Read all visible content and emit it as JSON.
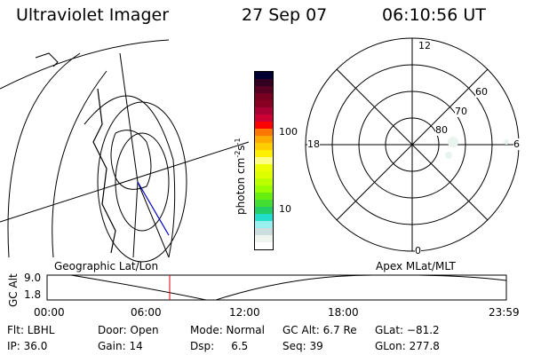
{
  "header": {
    "instrument": "Ultraviolet Imager",
    "date": "27 Sep 07",
    "time": "06:10:56 UT"
  },
  "colorbar": {
    "label": "photon cm",
    "label_exp1": "-2",
    "label_mid": "s",
    "label_exp2": "-1",
    "ticks": [
      "100",
      "10"
    ],
    "colors": [
      "#000033",
      "#330022",
      "#550022",
      "#770022",
      "#880022",
      "#aa0033",
      "#cc0033",
      "#ff0000",
      "#ff7700",
      "#ffaa00",
      "#ffcc00",
      "#ffee00",
      "#ffff88",
      "#eeff00",
      "#ddff00",
      "#bbff00",
      "#99ff00",
      "#66ee11",
      "#44dd33",
      "#22cc66",
      "#22ddcc",
      "#99eeee",
      "#ccdddd",
      "#eef4ee",
      "#ffffff"
    ]
  },
  "polar": {
    "mlt_labels": [
      "12",
      "18",
      "6",
      "0"
    ],
    "lat_labels": [
      "60",
      "70",
      "80"
    ]
  },
  "altplot": {
    "left_label": "Geographic Lat/Lon",
    "right_label": "Apex MLat/MLT",
    "ylabel": "GC Alt",
    "yticks": [
      "9.0",
      "1.8"
    ],
    "xticks": [
      "00:00",
      "06:00",
      "12:00",
      "18:00",
      "23:59"
    ],
    "current_time_marker": "06:10"
  },
  "status": {
    "row1": [
      "Flt: LBHL",
      "Door: Open",
      "Mode: Normal",
      "GC Alt: 6.7 Re",
      "GLat: −81.2"
    ],
    "row2": [
      "IP: 36.0",
      "Gain: 14",
      "Dsp:     6.5",
      "Seq: 39",
      "GLon: 277.8"
    ]
  }
}
